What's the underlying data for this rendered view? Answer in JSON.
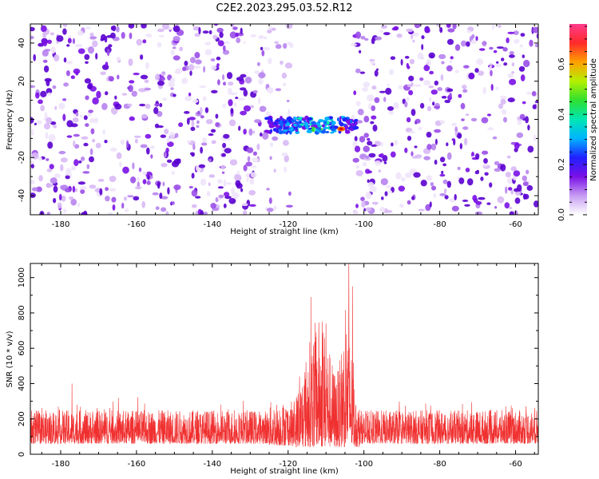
{
  "title": "C2E2.2023.295.03.52.R12",
  "colors": {
    "snr_line": "#f03030",
    "spectrogram_base": "#7a10e6",
    "spectrogram_light": "#d9b8f5"
  },
  "chart_data": [
    {
      "type": "heatmap",
      "name": "spectrogram",
      "xlabel": "Height of straight line (km)",
      "ylabel": "Frequency (Hz)",
      "xlim": [
        -188,
        -54
      ],
      "ylim": [
        -50,
        50
      ],
      "xticks": [
        -180,
        -160,
        -140,
        -120,
        -100,
        -80,
        -60
      ],
      "xtick_labels": [
        "-180",
        "-160",
        "-140",
        "-120",
        "-100",
        "-80",
        "-60"
      ],
      "yticks": [
        -40,
        -20,
        0,
        20,
        40
      ],
      "ytick_labels": [
        "-40",
        "-20",
        "0",
        "20",
        "40"
      ],
      "gap_km": [
        -119,
        -103
      ],
      "signal": {
        "x_range_km": [
          -126,
          -102
        ],
        "freq_hz": -3,
        "freq_halfwidth_hz": 4,
        "peak_amplitude": 0.65,
        "peak_km": -106
      },
      "background_amplitude": [
        0.02,
        0.12
      ],
      "colorbar": {
        "label": "Normalized spectral amplitude",
        "range": [
          0,
          0.76
        ],
        "ticks": [
          0.0,
          0.2,
          0.4,
          0.6
        ],
        "tick_labels": [
          "0.0",
          "0.2",
          "0.4",
          "0.6"
        ]
      }
    },
    {
      "type": "line",
      "name": "snr",
      "xlabel": "Height of straight line (km)",
      "ylabel": "SNR (10 * v/v)",
      "xlim": [
        -188,
        -54
      ],
      "ylim": [
        0,
        1080
      ],
      "xticks": [
        -180,
        -160,
        -140,
        -120,
        -100,
        -80,
        -60
      ],
      "xtick_labels": [
        "-180",
        "-160",
        "-140",
        "-120",
        "-100",
        "-80",
        "-60"
      ],
      "yticks": [
        0,
        200,
        400,
        600,
        800,
        1000
      ],
      "ytick_labels": [
        "0",
        "200",
        "400",
        "600",
        "800",
        "1000"
      ],
      "baseline_range": [
        60,
        250
      ],
      "peaks": [
        {
          "x": -177,
          "y": 400
        },
        {
          "x": -117,
          "y": 440
        },
        {
          "x": -114,
          "y": 890
        },
        {
          "x": -111,
          "y": 750
        },
        {
          "x": -110,
          "y": 740
        },
        {
          "x": -104,
          "y": 1080
        },
        {
          "x": -103,
          "y": 950
        }
      ]
    }
  ]
}
